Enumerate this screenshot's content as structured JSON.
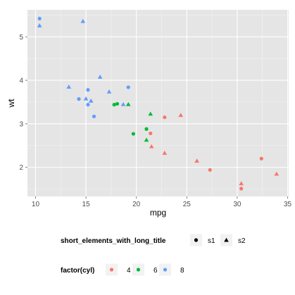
{
  "chart_data": {
    "type": "scatter",
    "xlabel": "mpg",
    "ylabel": "wt",
    "xlim": [
      9.2,
      35.1
    ],
    "ylim": [
      1.33,
      5.62
    ],
    "x_ticks": [
      "10",
      "15",
      "20",
      "25",
      "30",
      "35"
    ],
    "y_ticks": [
      "2",
      "3",
      "4",
      "5"
    ],
    "x_tick_values": [
      10,
      15,
      20,
      25,
      30,
      35
    ],
    "y_tick_values": [
      2,
      3,
      4,
      5
    ],
    "grid": true,
    "panel_background": "#e5e5e5",
    "grid_color": "#ffffff",
    "colors": {
      "4": "#f8766d",
      "6": "#00ba38",
      "8": "#619cff"
    },
    "legends": [
      {
        "title": "short_elements_with_long_title",
        "entries": [
          {
            "label": "s1",
            "shape": "circle"
          },
          {
            "label": "s2",
            "shape": "triangle"
          }
        ]
      },
      {
        "title": "factor(cyl)",
        "entries": [
          {
            "label": "4",
            "color": "#f8766d"
          },
          {
            "label": "6",
            "color": "#00ba38"
          },
          {
            "label": "8",
            "color": "#619cff"
          }
        ]
      }
    ],
    "points": [
      {
        "x": 10.4,
        "y": 5.42,
        "cyl": "8",
        "shape": "circle"
      },
      {
        "x": 10.4,
        "y": 5.25,
        "cyl": "8",
        "shape": "triangle"
      },
      {
        "x": 14.7,
        "y": 5.35,
        "cyl": "8",
        "shape": "triangle"
      },
      {
        "x": 13.3,
        "y": 3.84,
        "cyl": "8",
        "shape": "triangle"
      },
      {
        "x": 14.3,
        "y": 3.57,
        "cyl": "8",
        "shape": "circle"
      },
      {
        "x": 15.0,
        "y": 3.57,
        "cyl": "8",
        "shape": "triangle"
      },
      {
        "x": 15.2,
        "y": 3.78,
        "cyl": "8",
        "shape": "circle"
      },
      {
        "x": 15.2,
        "y": 3.44,
        "cyl": "8",
        "shape": "circle"
      },
      {
        "x": 15.5,
        "y": 3.52,
        "cyl": "8",
        "shape": "triangle"
      },
      {
        "x": 15.8,
        "y": 3.17,
        "cyl": "8",
        "shape": "circle"
      },
      {
        "x": 16.4,
        "y": 4.07,
        "cyl": "8",
        "shape": "triangle"
      },
      {
        "x": 17.3,
        "y": 3.73,
        "cyl": "8",
        "shape": "triangle"
      },
      {
        "x": 18.7,
        "y": 3.44,
        "cyl": "8",
        "shape": "triangle"
      },
      {
        "x": 19.2,
        "y": 3.84,
        "cyl": "8",
        "shape": "circle"
      },
      {
        "x": 17.8,
        "y": 3.44,
        "cyl": "6",
        "shape": "circle"
      },
      {
        "x": 18.1,
        "y": 3.46,
        "cyl": "6",
        "shape": "circle"
      },
      {
        "x": 19.2,
        "y": 3.44,
        "cyl": "6",
        "shape": "triangle"
      },
      {
        "x": 19.7,
        "y": 2.77,
        "cyl": "6",
        "shape": "circle"
      },
      {
        "x": 21.0,
        "y": 2.88,
        "cyl": "6",
        "shape": "circle"
      },
      {
        "x": 21.0,
        "y": 2.62,
        "cyl": "6",
        "shape": "triangle"
      },
      {
        "x": 21.4,
        "y": 3.22,
        "cyl": "6",
        "shape": "triangle"
      },
      {
        "x": 21.4,
        "y": 2.78,
        "cyl": "4",
        "shape": "circle"
      },
      {
        "x": 21.5,
        "y": 2.47,
        "cyl": "4",
        "shape": "triangle"
      },
      {
        "x": 22.8,
        "y": 3.15,
        "cyl": "4",
        "shape": "circle"
      },
      {
        "x": 22.8,
        "y": 2.32,
        "cyl": "4",
        "shape": "triangle"
      },
      {
        "x": 24.4,
        "y": 3.19,
        "cyl": "4",
        "shape": "triangle"
      },
      {
        "x": 26.0,
        "y": 2.14,
        "cyl": "4",
        "shape": "triangle"
      },
      {
        "x": 27.3,
        "y": 1.94,
        "cyl": "4",
        "shape": "circle"
      },
      {
        "x": 30.4,
        "y": 1.62,
        "cyl": "4",
        "shape": "triangle"
      },
      {
        "x": 30.4,
        "y": 1.51,
        "cyl": "4",
        "shape": "circle"
      },
      {
        "x": 32.4,
        "y": 2.2,
        "cyl": "4",
        "shape": "circle"
      },
      {
        "x": 33.9,
        "y": 1.84,
        "cyl": "4",
        "shape": "triangle"
      }
    ]
  }
}
